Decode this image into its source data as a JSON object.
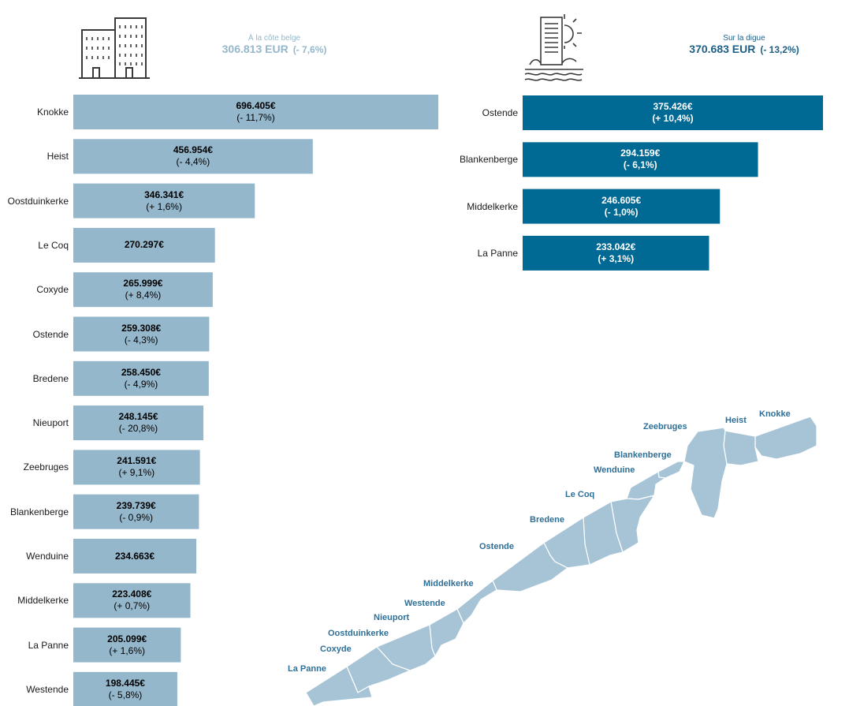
{
  "colors": {
    "coast_bar": "#95b7cc",
    "digue_bar": "#006994",
    "coast_header": "#95b7cc",
    "digue_header": "#1d5f86",
    "map_fill": "#a7c4d7",
    "map_label": "#2f6f96"
  },
  "icons": {
    "left": "apartment-buildings-icon",
    "right": "seafront-building-sun-icon"
  },
  "chart_data": [
    {
      "type": "bar",
      "orientation": "horizontal",
      "title": "À la côte belge",
      "summary_value": "306.813 EUR",
      "summary_change": "(- 7,6%)",
      "categories": [
        "Knokke",
        "Heist",
        "Oostduinkerke",
        "Le Coq",
        "Coxyde",
        "Ostende",
        "Bredene",
        "Nieuport",
        "Zeebruges",
        "Blankenberge",
        "Wenduine",
        "Middelkerke",
        "La Panne",
        "Westende"
      ],
      "values": [
        696405,
        456954,
        346341,
        270297,
        265999,
        259308,
        258450,
        248145,
        241591,
        239739,
        234663,
        223408,
        205099,
        198445
      ],
      "value_labels": [
        "696.405€",
        "456.954€",
        "346.341€",
        "270.297€",
        "265.999€",
        "259.308€",
        "258.450€",
        "248.145€",
        "241.591€",
        "239.739€",
        "234.663€",
        "223.408€",
        "205.099€",
        "198.445€"
      ],
      "change_labels": [
        "(- 11,7%)",
        "(- 4,4%)",
        "(+ 1,6%)",
        "",
        "(+ 8,4%)",
        "(- 4,3%)",
        "(- 4,9%)",
        "(- 20,8%)",
        "(+ 9,1%)",
        "(- 0,9%)",
        "",
        "(+ 0,7%)",
        "(+ 1,6%)",
        "(- 5,8%)"
      ]
    },
    {
      "type": "bar",
      "orientation": "horizontal",
      "title": "Sur la digue",
      "summary_value": "370.683 EUR",
      "summary_change": "(- 13,2%)",
      "categories": [
        "Ostende",
        "Blankenberge",
        "Middelkerke",
        "La Panne"
      ],
      "values": [
        375426,
        294159,
        246605,
        233042
      ],
      "value_labels": [
        "375.426€",
        "294.159€",
        "246.605€",
        "233.042€"
      ],
      "change_labels": [
        "(+ 10,4%)",
        "(- 6,1%)",
        "(- 1,0%)",
        "(+ 3,1%)"
      ]
    }
  ],
  "map": {
    "labels": [
      "Knokke",
      "Heist",
      "Zeebruges",
      "Blankenberge",
      "Wenduine",
      "Le Coq",
      "Bredene",
      "Ostende",
      "Middelkerke",
      "Westende",
      "Nieuport",
      "Oostduinkerke",
      "Coxyde",
      "La Panne"
    ]
  }
}
